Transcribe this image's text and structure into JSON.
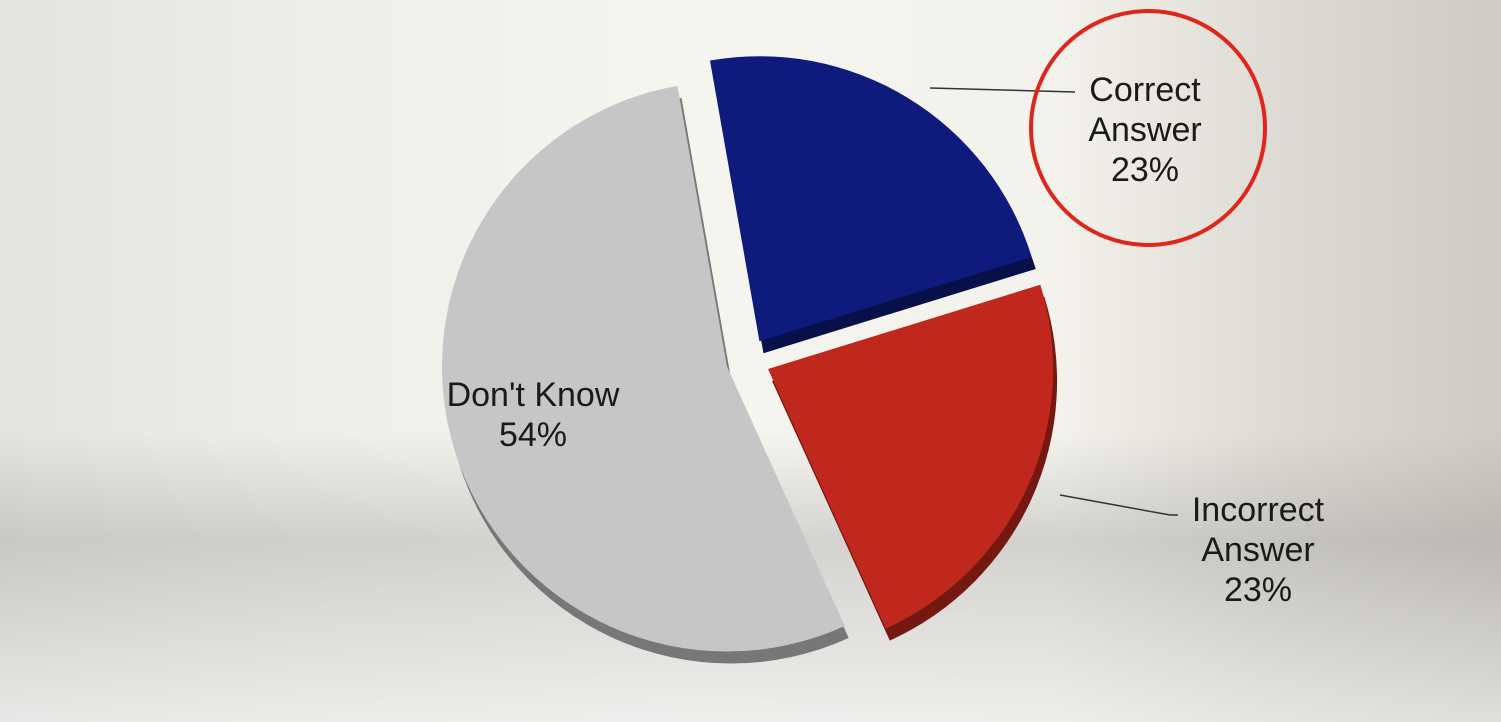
{
  "chart_data": {
    "type": "pie",
    "categories": [
      "Correct Answer",
      "Incorrect Answer",
      "Don't Know"
    ],
    "values": [
      23,
      23,
      54
    ],
    "value_labels": [
      "23%",
      "23%",
      "54%"
    ],
    "colors": [
      "#0e1b7c",
      "#c1281d",
      "#c6c6c6"
    ]
  }
}
